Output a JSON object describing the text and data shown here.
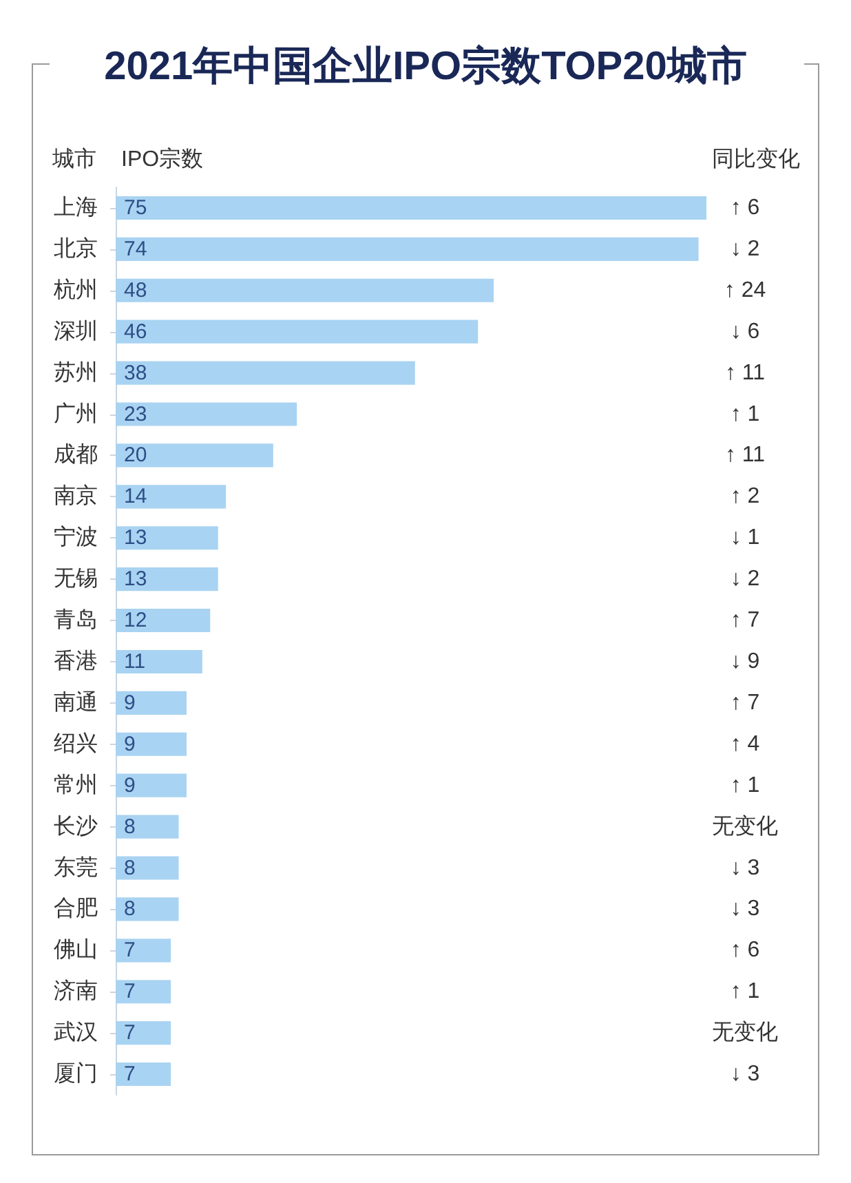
{
  "chart_data": {
    "type": "bar",
    "orientation": "horizontal",
    "title": "2021年中国企业IPO宗数TOP20城市",
    "ylabel": "城市",
    "xlabel": "IPO宗数",
    "categories": [
      "上海",
      "北京",
      "杭州",
      "深圳",
      "苏州",
      "广州",
      "成都",
      "南京",
      "宁波",
      "无锡",
      "青岛",
      "香港",
      "南通",
      "绍兴",
      "常州",
      "长沙",
      "东莞",
      "合肥",
      "佛山",
      "济南",
      "武汉",
      "厦门"
    ],
    "values": [
      75,
      74,
      48,
      46,
      38,
      23,
      20,
      14,
      13,
      13,
      12,
      11,
      9,
      9,
      9,
      8,
      8,
      8,
      7,
      7,
      7,
      7
    ],
    "color": "#a9d3f2",
    "data_labels": true,
    "tick_labels": "y",
    "annotations": [
      "同比变化",
      "↑ 6",
      "↓ 2",
      "↑ 24",
      "↓ 6",
      "↑ 11",
      "↑ 1",
      "↑ 11",
      "↑ 2",
      "↓ 1",
      "↓ 2",
      "↑ 7",
      "↓ 9",
      "↑ 7",
      "↑ 4",
      "↑ 1",
      "无变化",
      "↓ 3",
      "↓ 3",
      "↑ 6",
      "↑ 1",
      "无变化",
      "↓ 3"
    ]
  }
}
